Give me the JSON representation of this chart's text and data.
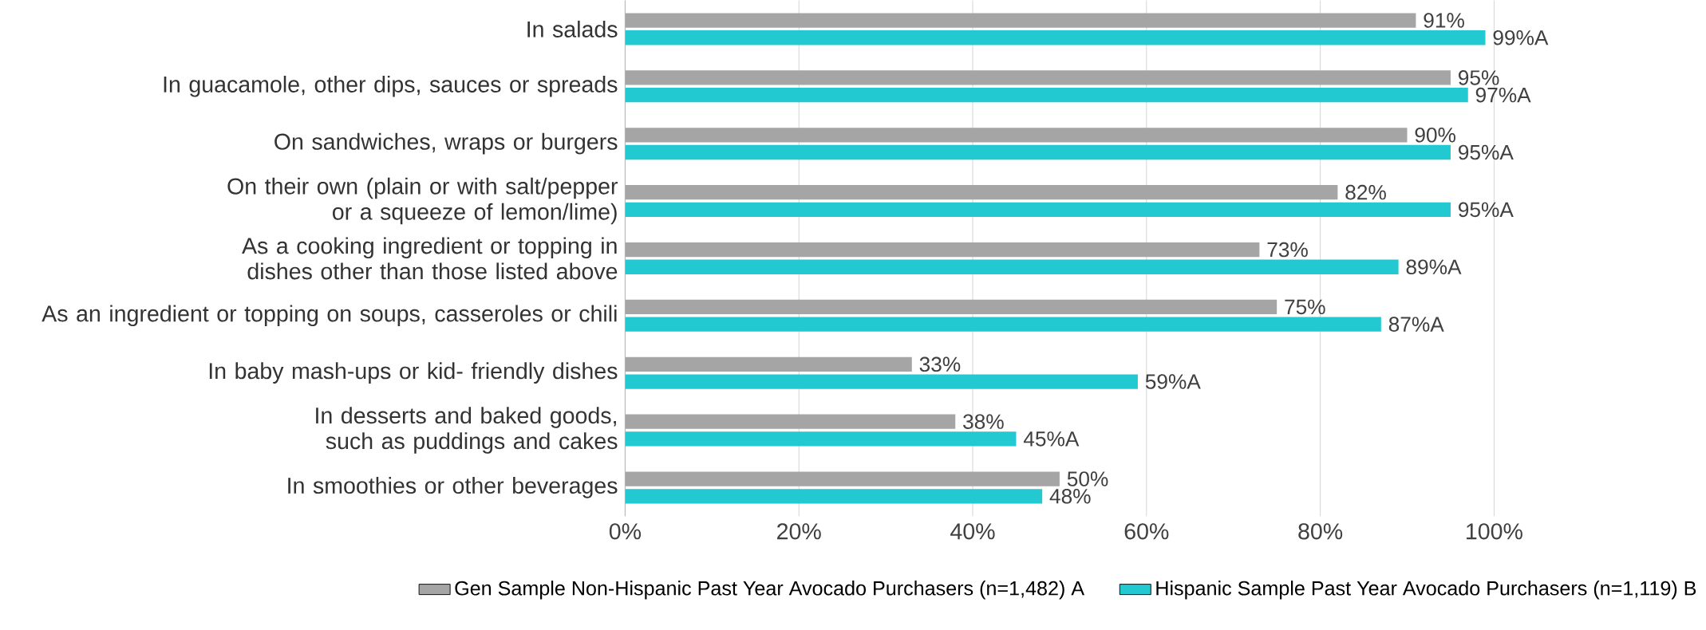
{
  "chart_data": {
    "type": "bar",
    "orientation": "horizontal",
    "categories": [
      "In salads",
      "In guacamole, other dips, sauces or spreads",
      "On sandwiches, wraps or burgers",
      "On their own (plain or with salt/pepper or a squeeze of lemon/lime)",
      "As a cooking ingredient or topping in dishes other than those listed above",
      "As an ingredient or topping on soups, casseroles or chili",
      "In baby mash-ups or kid- friendly dishes",
      "In desserts and baked goods, such as puddings and cakes",
      "In smoothies or other beverages"
    ],
    "series": [
      {
        "name": "Gen Sample Non-Hispanic Past Year Avocado Purchasers (n=1,482) A",
        "color": "#a5a5a5",
        "values": [
          91,
          95,
          90,
          82,
          73,
          75,
          33,
          38,
          50
        ],
        "value_labels": [
          "91%",
          "95%",
          "90%",
          "82%",
          "73%",
          "75%",
          "33%",
          "38%",
          "50%"
        ]
      },
      {
        "name": "Hispanic Sample Past Year Avocado Purchasers (n=1,119) B",
        "color": "#22c9d1",
        "values": [
          99,
          97,
          95,
          95,
          89,
          87,
          59,
          45,
          48
        ],
        "value_labels": [
          "99%A",
          "97%A",
          "95%A",
          "95%A",
          "89%A",
          "87%A",
          "59%A",
          "45%A",
          "48%"
        ]
      }
    ],
    "xlim": [
      0,
      100
    ],
    "xticks": [
      {
        "value": 0,
        "label": "0%"
      },
      {
        "value": 20,
        "label": "20%"
      },
      {
        "value": 40,
        "label": "40%"
      },
      {
        "value": 60,
        "label": "60%"
      },
      {
        "value": 80,
        "label": "80%"
      },
      {
        "value": 100,
        "label": "100%"
      }
    ],
    "grid": "x",
    "legend": "bottom"
  }
}
